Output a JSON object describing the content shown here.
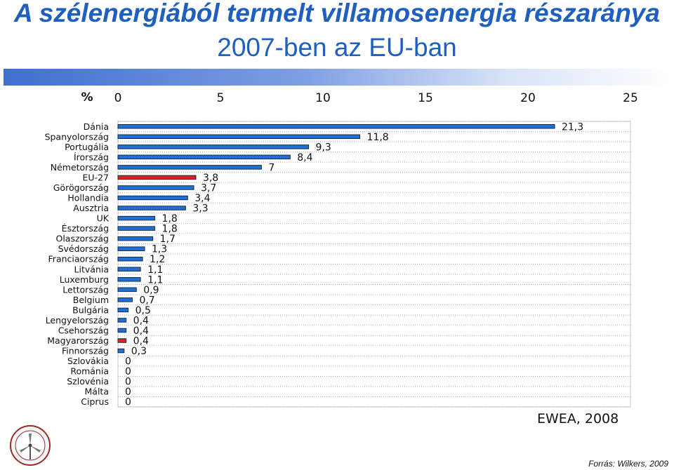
{
  "title_line1": "A szélenergiából termelt villamosenergia részaránya",
  "title_line2": "2007-ben az EU-ban",
  "source_label": "EWEA, 2008",
  "credit": "Forrás: Wilkers, 2009",
  "colors": {
    "title": "#1f5fbf",
    "bar": "#1f6fd6",
    "highlight": "#e02020",
    "bar_border": "#1a2a44"
  },
  "chart_data": {
    "type": "bar",
    "orientation": "horizontal",
    "unit_label": "%",
    "xlim": [
      0,
      25
    ],
    "xticks": [
      "0",
      "5",
      "10",
      "15",
      "20",
      "25"
    ],
    "categories": [
      "Dánia",
      "Spanyolország",
      "Portugália",
      "Írország",
      "Németország",
      "EU-27",
      "Görögország",
      "Hollandia",
      "Ausztria",
      "UK",
      "Észtország",
      "Olaszország",
      "Svédország",
      "Franciaország",
      "Litvánia",
      "Luxemburg",
      "Lettország",
      "Belgium",
      "Bulgária",
      "Lengyelország",
      "Csehország",
      "Magyarország",
      "Finnország",
      "Szlovákia",
      "Románia",
      "Szlovénia",
      "Málta",
      "Ciprus"
    ],
    "values": [
      21.3,
      11.8,
      9.3,
      8.4,
      7,
      3.8,
      3.7,
      3.4,
      3.3,
      1.8,
      1.8,
      1.7,
      1.3,
      1.2,
      1.1,
      1.1,
      0.9,
      0.7,
      0.5,
      0.4,
      0.4,
      0.4,
      0.3,
      0,
      0,
      0,
      0,
      0
    ],
    "value_labels": [
      "21,3",
      "11,8",
      "9,3",
      "8,4",
      "7",
      "3,8",
      "3,7",
      "3,4",
      "3,3",
      "1,8",
      "1,8",
      "1,7",
      "1,3",
      "1,2",
      "1,1",
      "1,1",
      "0,9",
      "0,7",
      "0,5",
      "0,4",
      "0,4",
      "0,4",
      "0,3",
      "0",
      "0",
      "0",
      "0",
      "0"
    ],
    "highlighted": [
      "EU-27",
      "Magyarország"
    ],
    "grid": true
  }
}
